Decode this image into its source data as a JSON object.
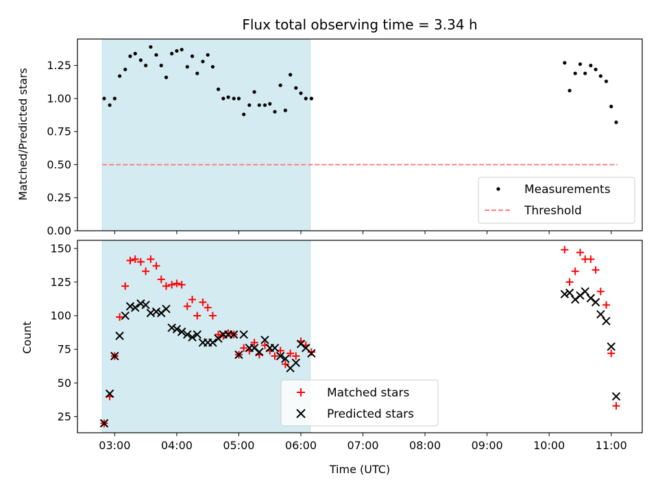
{
  "chart_data": [
    {
      "type": "scatter",
      "title": "Flux total observing time = 3.34 h",
      "xlabel": "",
      "ylabel": "Matched/Predicted stars",
      "ylim": [
        0,
        1.45
      ],
      "xlim": [
        2.4,
        11.5
      ],
      "yticks": [
        0,
        0.25,
        0.5,
        0.75,
        1.0,
        1.25
      ],
      "ytick_labels": [
        "0.00",
        "0.25",
        "0.50",
        "0.75",
        "1.00",
        "1.25"
      ],
      "shaded_region": [
        2.8,
        6.15
      ],
      "shaded_color": "#d4ebf1",
      "threshold": {
        "y": 0.5,
        "x_range": [
          2.8,
          11.1
        ],
        "color": "#ff7f7f"
      },
      "legend_position": "lower-right",
      "legend": [
        {
          "label": "Measurements",
          "marker": "dot",
          "color": "#000000"
        },
        {
          "label": "Threshold",
          "marker": "dashed-line",
          "color": "#ff7f7f"
        }
      ],
      "series": [
        {
          "name": "Measurements",
          "color": "#000000",
          "x": [
            2.83,
            2.92,
            3.0,
            3.08,
            3.17,
            3.25,
            3.33,
            3.42,
            3.5,
            3.58,
            3.67,
            3.75,
            3.83,
            3.92,
            4.0,
            4.08,
            4.17,
            4.25,
            4.33,
            4.42,
            4.5,
            4.58,
            4.67,
            4.75,
            4.83,
            4.92,
            5.0,
            5.08,
            5.17,
            5.25,
            5.33,
            5.42,
            5.5,
            5.58,
            5.67,
            5.75,
            5.83,
            5.92,
            6.0,
            6.08,
            6.17,
            10.25,
            10.33,
            10.42,
            10.5,
            10.58,
            10.67,
            10.75,
            10.83,
            10.92,
            11.0,
            11.08
          ],
          "y": [
            1.0,
            0.95,
            1.0,
            1.17,
            1.22,
            1.32,
            1.34,
            1.29,
            1.25,
            1.39,
            1.33,
            1.25,
            1.16,
            1.34,
            1.36,
            1.37,
            1.24,
            1.32,
            1.19,
            1.28,
            1.33,
            1.24,
            1.07,
            1.0,
            1.01,
            1.0,
            1.0,
            0.88,
            0.95,
            1.05,
            0.95,
            0.95,
            0.96,
            0.9,
            1.1,
            0.91,
            1.18,
            1.08,
            1.04,
            1.0,
            1.0,
            1.27,
            1.06,
            1.19,
            1.26,
            1.19,
            1.25,
            1.22,
            1.17,
            1.13,
            0.94,
            0.82
          ]
        }
      ]
    },
    {
      "type": "scatter",
      "title": "",
      "xlabel": "Time (UTC)",
      "ylabel": "Count",
      "ylim": [
        13,
        156
      ],
      "xlim": [
        2.4,
        11.5
      ],
      "yticks": [
        25,
        50,
        75,
        100,
        125,
        150
      ],
      "ytick_labels": [
        "25",
        "50",
        "75",
        "100",
        "125",
        "150"
      ],
      "xticks": [
        3,
        4,
        5,
        6,
        7,
        8,
        9,
        10,
        11
      ],
      "xtick_labels": [
        "03:00",
        "04:00",
        "05:00",
        "06:00",
        "07:00",
        "08:00",
        "09:00",
        "10:00",
        "11:00"
      ],
      "shaded_region": [
        2.8,
        6.15
      ],
      "shaded_color": "#d4ebf1",
      "legend_position": "lower-center",
      "legend": [
        {
          "label": "Matched stars",
          "marker": "plus",
          "color": "#ff0000"
        },
        {
          "label": "Predicted stars",
          "marker": "x",
          "color": "#000000"
        }
      ],
      "series": [
        {
          "name": "Matched stars",
          "marker": "plus",
          "color": "#ff0000",
          "x": [
            2.83,
            2.92,
            3.0,
            3.08,
            3.17,
            3.25,
            3.33,
            3.42,
            3.5,
            3.58,
            3.67,
            3.75,
            3.83,
            3.92,
            4.0,
            4.08,
            4.17,
            4.25,
            4.33,
            4.42,
            4.5,
            4.58,
            4.67,
            4.75,
            4.83,
            4.92,
            5.0,
            5.08,
            5.17,
            5.25,
            5.33,
            5.42,
            5.5,
            5.58,
            5.67,
            5.75,
            5.83,
            5.92,
            6.0,
            6.08,
            6.17,
            10.25,
            10.33,
            10.42,
            10.5,
            10.58,
            10.67,
            10.75,
            10.83,
            10.92,
            11.0,
            11.08
          ],
          "y": [
            20,
            40,
            70,
            99,
            122,
            141,
            142,
            140,
            133,
            142,
            137,
            127,
            122,
            123,
            124,
            123,
            107,
            112,
            100,
            110,
            106,
            100,
            86,
            85,
            87,
            86,
            71,
            76,
            74,
            80,
            71,
            78,
            74,
            70,
            74,
            64,
            72,
            70,
            81,
            78,
            73,
            149,
            125,
            133,
            147,
            142,
            142,
            134,
            118,
            108,
            72,
            33
          ]
        },
        {
          "name": "Predicted stars",
          "marker": "x",
          "color": "#000000",
          "x": [
            2.83,
            2.92,
            3.0,
            3.08,
            3.17,
            3.25,
            3.33,
            3.42,
            3.5,
            3.58,
            3.67,
            3.75,
            3.83,
            3.92,
            4.0,
            4.08,
            4.17,
            4.25,
            4.33,
            4.42,
            4.5,
            4.58,
            4.67,
            4.75,
            4.83,
            4.92,
            5.0,
            5.08,
            5.17,
            5.25,
            5.33,
            5.42,
            5.5,
            5.58,
            5.67,
            5.75,
            5.83,
            5.92,
            6.0,
            6.08,
            6.17,
            10.25,
            10.33,
            10.42,
            10.5,
            10.58,
            10.67,
            10.75,
            10.83,
            10.92,
            11.0,
            11.08
          ],
          "y": [
            20,
            42,
            70,
            85,
            100,
            107,
            106,
            109,
            108,
            102,
            103,
            102,
            105,
            91,
            90,
            88,
            86,
            84,
            86,
            80,
            80,
            80,
            83,
            86,
            86,
            86,
            71,
            86,
            76,
            76,
            73,
            82,
            76,
            76,
            70,
            68,
            61,
            65,
            79,
            76,
            72,
            116,
            117,
            112,
            115,
            118,
            113,
            110,
            101,
            96,
            77,
            40
          ]
        }
      ]
    }
  ]
}
